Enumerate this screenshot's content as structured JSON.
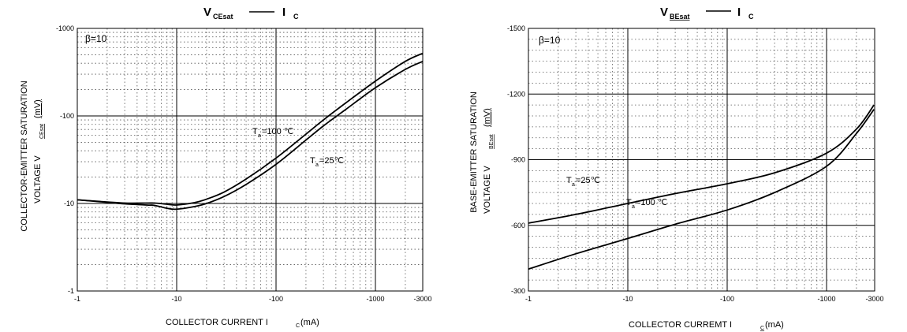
{
  "chart_data": [
    {
      "type": "line",
      "title": {
        "main": "V",
        "main_sub": "CEsat",
        "sep": "—",
        "right": "I",
        "right_sub": "C"
      },
      "x_axis": {
        "label_pre": "COLLECTOR CURRENT  ",
        "label_sym": "I",
        "label_sub": "C",
        "label_unit": "(mA)",
        "scale": "log",
        "range": [
          1,
          3000
        ],
        "ticks": [
          {
            "v": 1,
            "label": "-1"
          },
          {
            "v": 10,
            "label": "-10"
          },
          {
            "v": 100,
            "label": "-100"
          },
          {
            "v": 1000,
            "label": "-1000"
          },
          {
            "v": 3000,
            "label": "-3000"
          }
        ]
      },
      "y_axis": {
        "label_line1": "COLLECTOR-EMITTER SATURATION",
        "label_line2_pre": "VOLTAGE    V",
        "label_line2_sub": "CEsat",
        "label_unit": "(mV)",
        "scale": "log",
        "range": [
          1,
          1000
        ],
        "ticks": [
          {
            "v": 1,
            "label": "-1"
          },
          {
            "v": 10,
            "label": "-10"
          },
          {
            "v": 100,
            "label": "-100"
          },
          {
            "v": 1000,
            "label": "-1000"
          }
        ]
      },
      "grid": true,
      "beta_label": "β=10",
      "series": [
        {
          "name_pre": "T",
          "name_sub": "a",
          "name_post": "=100 ℃",
          "x": [
            1,
            2,
            3,
            5,
            6,
            8,
            10,
            15,
            20,
            30,
            50,
            100,
            200,
            300,
            500,
            1000,
            2000,
            3000
          ],
          "y": [
            11,
            10.4,
            10.1,
            10.1,
            10.1,
            9.8,
            9.6,
            10.2,
            11.2,
            13.5,
            19,
            33,
            62,
            90,
            140,
            250,
            420,
            520
          ]
        },
        {
          "name_pre": "T",
          "name_sub": "a",
          "name_post": "=25℃",
          "x": [
            1,
            2,
            3,
            5,
            6,
            8,
            10,
            15,
            20,
            30,
            50,
            100,
            200,
            300,
            500,
            1000,
            2000,
            3000
          ],
          "y": [
            11,
            10.3,
            9.9,
            9.6,
            9.5,
            8.8,
            8.6,
            9.2,
            10,
            12,
            16.5,
            28,
            53,
            77,
            118,
            210,
            340,
            420
          ]
        }
      ]
    },
    {
      "type": "line",
      "title": {
        "main": "V",
        "main_sub": "BEsat",
        "sep": "—",
        "right": "I",
        "right_sub": "C"
      },
      "x_axis": {
        "label_pre": "COLLECTOR CURREMT  ",
        "label_sym": "I",
        "label_sub": "C",
        "label_unit": "(mA)",
        "scale": "log",
        "range": [
          1,
          3000
        ],
        "ticks": [
          {
            "v": 1,
            "label": "-1"
          },
          {
            "v": 10,
            "label": "-10"
          },
          {
            "v": 100,
            "label": "-100"
          },
          {
            "v": 1000,
            "label": "-1000"
          },
          {
            "v": 3000,
            "label": "-3000"
          }
        ]
      },
      "y_axis": {
        "label_line1": "BASE-EMITTER SATURATION",
        "label_line2_pre": "VOLTAGE    V",
        "label_line2_sub": "BEsat",
        "label_unit": "(mV)",
        "scale": "linear",
        "range": [
          300,
          1500
        ],
        "ticks": [
          {
            "v": 300,
            "label": "-300"
          },
          {
            "v": 600,
            "label": "-600"
          },
          {
            "v": 900,
            "label": "-900"
          },
          {
            "v": 1200,
            "label": "-1200"
          },
          {
            "v": 1500,
            "label": "-1500"
          }
        ]
      },
      "grid": true,
      "beta_label": "β=10",
      "series": [
        {
          "name_pre": "T",
          "name_sub": "a",
          "name_post": "=25℃",
          "x": [
            1,
            3,
            10,
            30,
            100,
            300,
            1000,
            2000,
            3000
          ],
          "y": [
            610,
            650,
            700,
            745,
            790,
            840,
            930,
            1040,
            1150
          ]
        },
        {
          "name_pre": "T",
          "name_sub": "a",
          "name_post": "=100 ℃",
          "x": [
            1,
            3,
            10,
            30,
            100,
            300,
            1000,
            2000,
            3000
          ],
          "y": [
            400,
            470,
            540,
            605,
            670,
            750,
            870,
            1020,
            1130
          ]
        }
      ]
    }
  ]
}
